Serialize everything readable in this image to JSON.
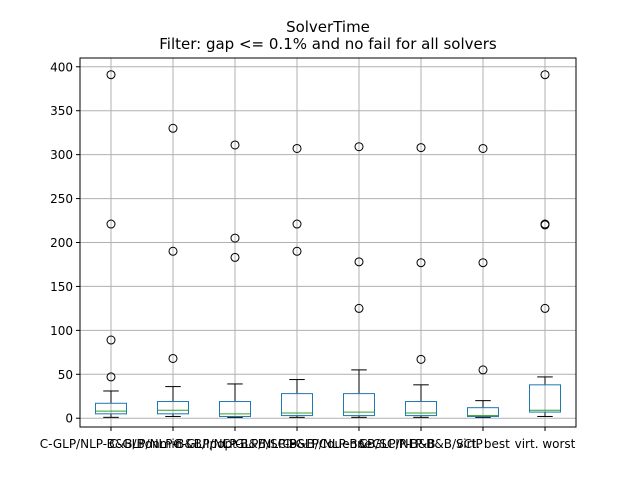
{
  "chart_data": {
    "type": "box",
    "title": "SolverTime",
    "subtitle": "Filter: gap <= 0.1% and no fail for all solvers",
    "xlabel": "",
    "ylabel": "",
    "ylim": [
      -10,
      410
    ],
    "yticks": [
      0,
      50,
      100,
      150,
      200,
      250,
      300,
      350,
      400
    ],
    "grid": true,
    "categories": [
      "C-GLP/NLP-B&B/Bonmin",
      "C-GLP/NLP-B&B/Ipopt",
      "C-GLP/NLP-B&B/SCIP",
      "C-GLP/NLP-B&B/Couenne",
      "C-GLP/NLP-B&B/SCIP-B&B",
      "C-GLP/NLP-B&B/SCIP",
      "virt. best",
      "virt. worst"
    ],
    "boxes": [
      {
        "whislo": 1,
        "q1": 5,
        "med": 8,
        "q3": 17,
        "whishi": 31,
        "fliers": [
          47,
          89,
          221,
          391
        ]
      },
      {
        "whislo": 2,
        "q1": 5,
        "med": 9,
        "q3": 19,
        "whishi": 36,
        "fliers": [
          68,
          190,
          330
        ]
      },
      {
        "whislo": 1,
        "q1": 2,
        "med": 5,
        "q3": 19,
        "whishi": 39,
        "fliers": [
          183,
          205,
          311
        ]
      },
      {
        "whislo": 1,
        "q1": 3,
        "med": 6,
        "q3": 28,
        "whishi": 44,
        "fliers": [
          190,
          221,
          307
        ]
      },
      {
        "whislo": 1,
        "q1": 3,
        "med": 7,
        "q3": 28,
        "whishi": 55,
        "fliers": [
          125,
          178,
          309
        ]
      },
      {
        "whislo": 1,
        "q1": 3,
        "med": 6,
        "q3": 19,
        "whishi": 38,
        "fliers": [
          67,
          177,
          308
        ]
      },
      {
        "whislo": 1,
        "q1": 2,
        "med": 3,
        "q3": 12,
        "whishi": 20,
        "fliers": [
          55,
          177,
          307
        ]
      },
      {
        "whislo": 2,
        "q1": 7,
        "med": 9,
        "q3": 38,
        "whishi": 47,
        "fliers": [
          125,
          220,
          221,
          391
        ]
      }
    ],
    "colors": {
      "box": "#1f77b4",
      "median": "#2ca02c",
      "whisker": "#000000",
      "grid": "#b0b0b0"
    }
  }
}
